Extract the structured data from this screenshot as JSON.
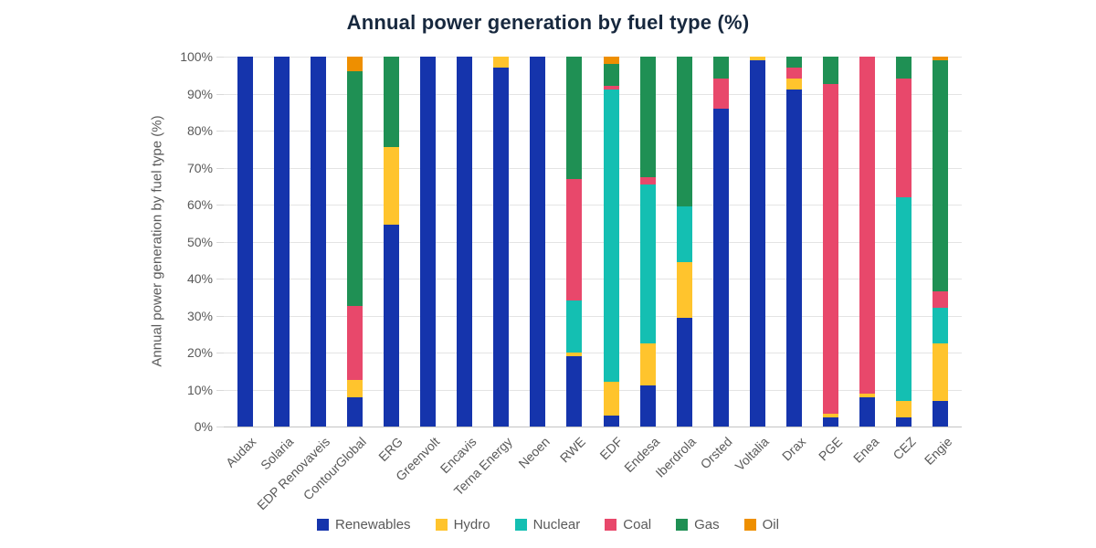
{
  "title": "Annual power generation by fuel type (%)",
  "y_axis": {
    "label": "Annual power generation by fuel type (%)",
    "ticks": [
      "0%",
      "10%",
      "20%",
      "30%",
      "40%",
      "50%",
      "60%",
      "70%",
      "80%",
      "90%",
      "100%"
    ]
  },
  "chart_data": {
    "type": "bar",
    "stacked": true,
    "stacked_percent": true,
    "title": "Annual power generation by fuel type (%)",
    "xlabel": "",
    "ylabel": "Annual power generation by fuel type (%)",
    "ylim": [
      0,
      100
    ],
    "grid": true,
    "legend_position": "bottom",
    "categories": [
      "Audax",
      "Solaria",
      "EDP Renovaveis",
      "ContourGlobal",
      "ERG",
      "Greenvolt",
      "Encavis",
      "Terna Energy",
      "Neoen",
      "RWE",
      "EDF",
      "Endesa",
      "Iberdrola",
      "Orsted",
      "Voltalia",
      "Drax",
      "PGE",
      "Enea",
      "CEZ",
      "Engie"
    ],
    "series": [
      {
        "name": "Renewables",
        "color": "#1534AC",
        "values": [
          100,
          100,
          100,
          8,
          54.5,
          100,
          100,
          97,
          100,
          19,
          3,
          11,
          29.5,
          86,
          99,
          91,
          2.5,
          8,
          2.5,
          7
        ]
      },
      {
        "name": "Hydro",
        "color": "#FFC42D",
        "values": [
          0,
          0,
          0,
          4.5,
          21,
          0,
          0,
          3,
          0,
          1,
          9,
          11.5,
          15,
          0,
          1,
          3,
          1,
          1,
          4.5,
          15.5
        ]
      },
      {
        "name": "Nuclear",
        "color": "#14BFB2",
        "values": [
          0,
          0,
          0,
          0,
          0,
          0,
          0,
          0,
          0,
          14,
          79,
          43,
          15,
          0,
          0,
          0,
          0,
          0,
          55,
          9.5
        ]
      },
      {
        "name": "Coal",
        "color": "#E8486B",
        "values": [
          0,
          0,
          0,
          20,
          0,
          0,
          0,
          0,
          0,
          33,
          1,
          2,
          0,
          8,
          0,
          3,
          89,
          91,
          32,
          4.5
        ]
      },
      {
        "name": "Gas",
        "color": "#1F9054",
        "values": [
          0,
          0,
          0,
          63.5,
          24.5,
          0,
          0,
          0,
          0,
          33,
          6,
          32.5,
          40.5,
          6,
          0,
          3,
          7.5,
          0,
          6,
          62.5
        ]
      },
      {
        "name": "Oil",
        "color": "#EE8F00",
        "values": [
          0,
          0,
          0,
          4,
          0,
          0,
          0,
          0,
          0,
          0,
          2,
          0,
          0,
          0,
          0,
          0,
          0,
          0,
          0,
          1
        ]
      }
    ]
  }
}
